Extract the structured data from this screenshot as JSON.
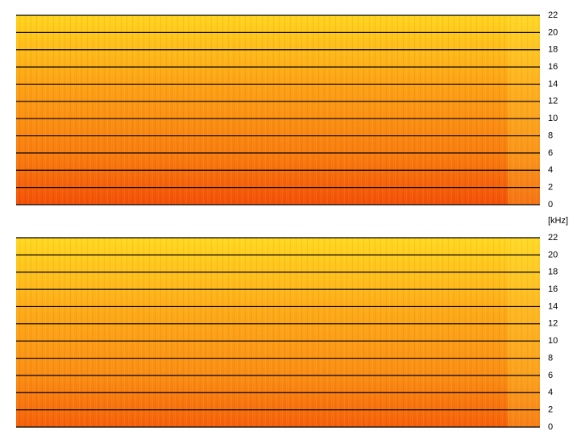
{
  "axis_label": "[kHz]",
  "chart_data": [
    {
      "type": "spectrogram",
      "ylim": [
        0,
        22
      ],
      "yticks": [
        0,
        2,
        4,
        6,
        8,
        10,
        12,
        14,
        16,
        18,
        20,
        22
      ],
      "grid": true
    },
    {
      "type": "spectrogram",
      "ylim": [
        0,
        22
      ],
      "yticks": [
        0,
        2,
        4,
        6,
        8,
        10,
        12,
        14,
        16,
        18,
        20,
        22
      ],
      "grid": true
    }
  ]
}
